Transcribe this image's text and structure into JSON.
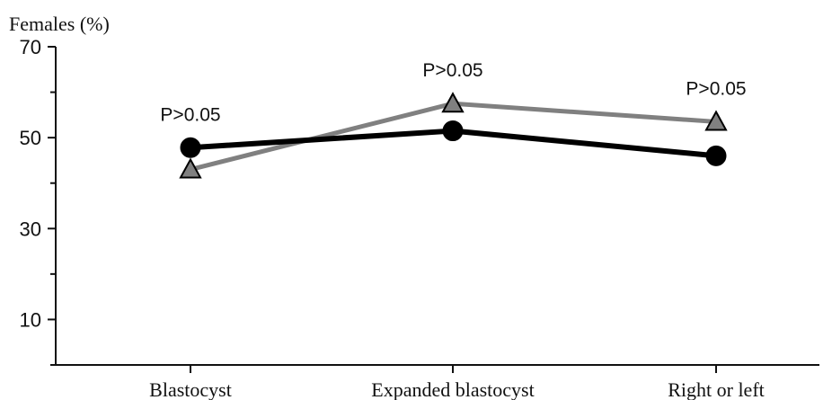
{
  "chart_data": {
    "type": "line",
    "title": "",
    "xlabel": "",
    "ylabel": "Females (%)",
    "ylim": [
      0,
      70
    ],
    "yticks": [
      10,
      30,
      50,
      70
    ],
    "categories": [
      "Blastocyst",
      "Expanded blastocyst",
      "Right or left"
    ],
    "series": [
      {
        "color": "#000000",
        "marker": "circle",
        "values": [
          47.8,
          51.5,
          46.0
        ]
      },
      {
        "color": "#808080",
        "marker": "triangle",
        "values": [
          43.0,
          57.5,
          53.5
        ]
      }
    ],
    "annotations": [
      "P>0.05",
      "P>0.05",
      "P>0.05"
    ],
    "grid": false,
    "legend": "none"
  }
}
